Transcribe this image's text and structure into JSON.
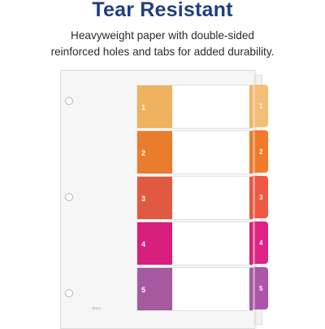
{
  "header": {
    "title": "Tear Resistant",
    "subtitle_line1": "Heavyweight paper with double-sided",
    "subtitle_line2": "reinforced holes and tabs for added durability."
  },
  "dividers": [
    {
      "number": "1",
      "color": "#efb25e",
      "tab_color": "#f5be76",
      "strip_color": "#efb25e"
    },
    {
      "number": "2",
      "color": "#ea7d2c",
      "tab_color": "#f07a2a",
      "strip_color": "#ea7d2c"
    },
    {
      "number": "3",
      "color": "#e05a41",
      "tab_color": "#ef5842",
      "strip_color": "#e05a41"
    },
    {
      "number": "4",
      "color": "#d81f7c",
      "tab_color": "#dd2484",
      "strip_color": "#d81f7c"
    },
    {
      "number": "5",
      "color": "#a55aa0",
      "tab_color": "#ad55a8",
      "strip_color": "#a55aa0"
    }
  ],
  "brand": {
    "logo_text": "Avery"
  }
}
